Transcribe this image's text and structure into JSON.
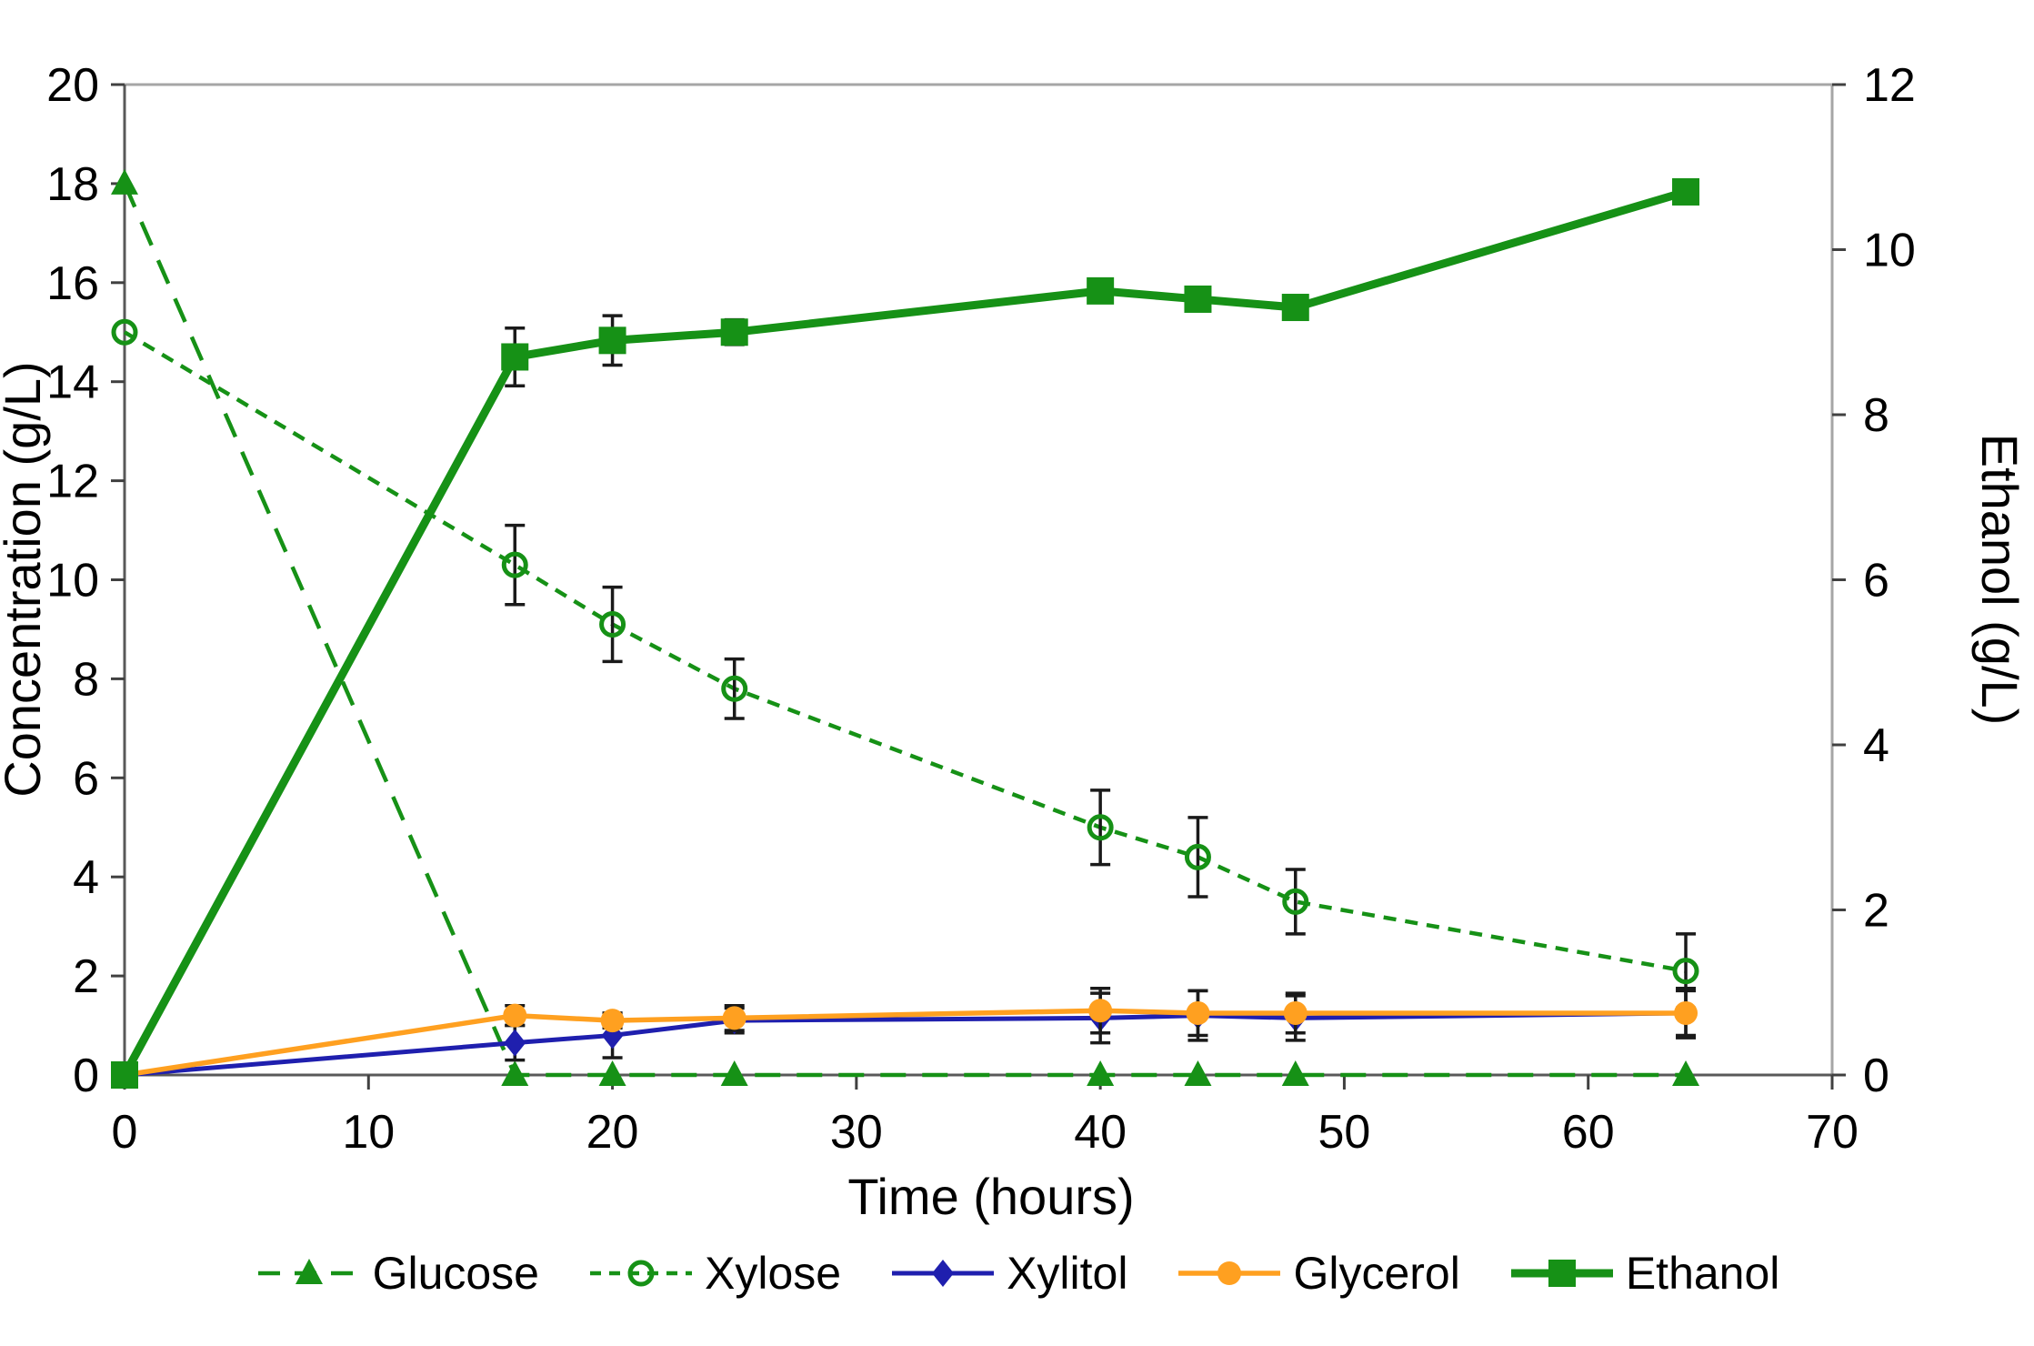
{
  "chart_data": {
    "type": "line",
    "title": "",
    "xlabel": "Time (hours)",
    "x": [
      0,
      16,
      20,
      25,
      40,
      44,
      48,
      64
    ],
    "x_axis": {
      "min": 0,
      "max": 70,
      "ticks": [
        0,
        10,
        20,
        30,
        40,
        50,
        60,
        70
      ]
    },
    "left_axis": {
      "label": "Concentration (g/L)",
      "min": 0,
      "max": 20,
      "ticks": [
        0,
        2,
        4,
        6,
        8,
        10,
        12,
        14,
        16,
        18,
        20
      ]
    },
    "right_axis": {
      "label": "Ethanol (g/L)",
      "min": 0,
      "max": 12,
      "ticks": [
        0,
        2,
        4,
        6,
        8,
        10,
        12
      ]
    },
    "grid": false,
    "legend_position": "bottom",
    "error_bar_color": "#1a1a1a",
    "series": [
      {
        "name": "Glucose",
        "axis": "left",
        "color": "#169116",
        "line_style": "dashed-long",
        "line_width": 4.5,
        "marker": "triangle-filled",
        "values": [
          18,
          0,
          0,
          0,
          0,
          0,
          0,
          0
        ],
        "errors": [
          0,
          0,
          0,
          0,
          0,
          0,
          0,
          0
        ]
      },
      {
        "name": "Xylose",
        "axis": "left",
        "color": "#169116",
        "line_style": "dashed-short",
        "line_width": 4.5,
        "marker": "circle-open",
        "values": [
          15,
          10.3,
          9.1,
          7.8,
          5.0,
          4.4,
          3.5,
          2.1
        ],
        "errors": [
          0,
          0.8,
          0.75,
          0.6,
          0.75,
          0.8,
          0.65,
          0.75
        ]
      },
      {
        "name": "Xylitol",
        "axis": "left",
        "color": "#1f1fae",
        "line_style": "solid",
        "line_width": 5,
        "marker": "diamond-filled",
        "values": [
          0,
          0.65,
          0.8,
          1.1,
          1.15,
          1.2,
          1.15,
          1.25
        ],
        "errors": [
          0,
          0.35,
          0.45,
          0.25,
          0.5,
          0.5,
          0.45,
          0.5
        ]
      },
      {
        "name": "Glycerol",
        "axis": "left",
        "color": "#ffa020",
        "line_style": "solid",
        "line_width": 5.5,
        "marker": "circle-filled",
        "values": [
          0,
          1.2,
          1.1,
          1.15,
          1.3,
          1.25,
          1.25,
          1.25
        ],
        "errors": [
          0,
          0.2,
          0.15,
          0.25,
          0.45,
          0.45,
          0.4,
          0.45
        ]
      },
      {
        "name": "Ethanol",
        "axis": "right",
        "color": "#169116",
        "line_style": "solid",
        "line_width": 9,
        "marker": "square-filled",
        "values": [
          0,
          8.7,
          8.9,
          9.0,
          9.5,
          9.4,
          9.3,
          10.7
        ],
        "errors": [
          0,
          0.35,
          0.3,
          0.15,
          0,
          0,
          0,
          0
        ]
      }
    ]
  },
  "frame": {
    "outer_color": "#a6a6a6",
    "axis_color": "#595959",
    "tick_color": "#404040"
  }
}
